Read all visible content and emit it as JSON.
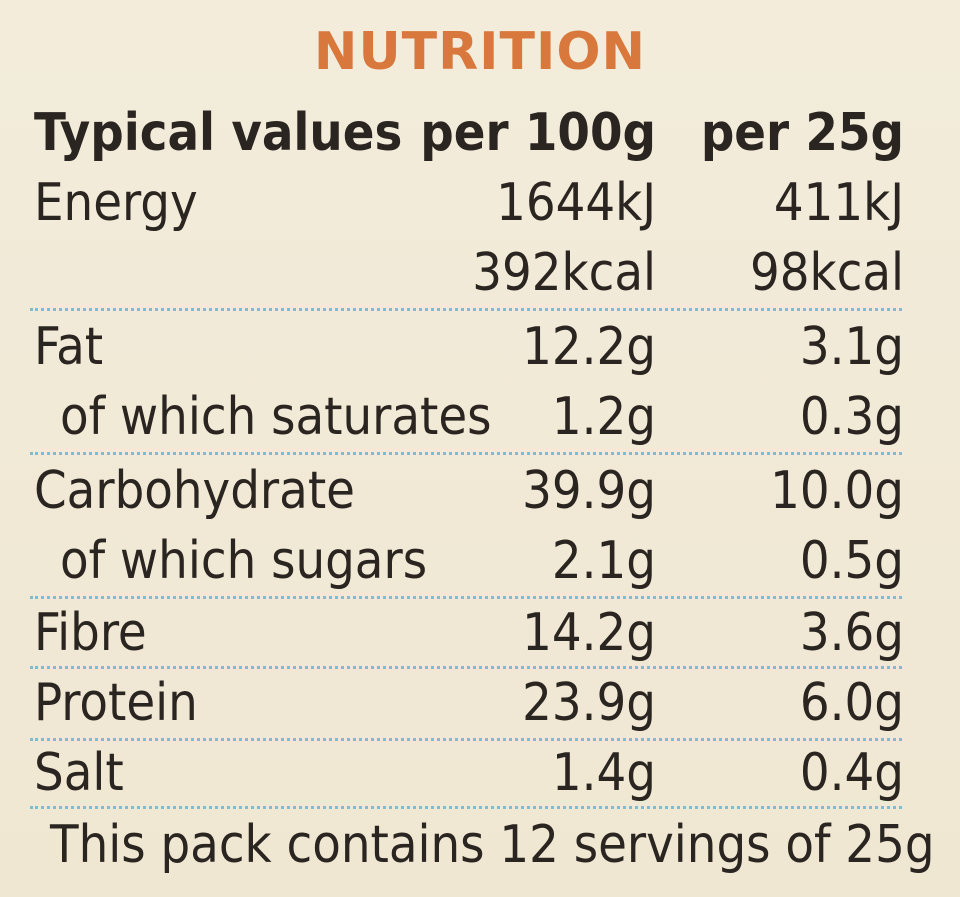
{
  "title": "NUTRITION",
  "header": {
    "label": "Typical values",
    "col1": "per 100g",
    "col2": "per 25g"
  },
  "rows": [
    {
      "label": "Energy",
      "per100": "1644kJ",
      "per25": "411kJ"
    },
    {
      "label": "",
      "per100": "392kcal",
      "per25": "98kcal"
    },
    {
      "label": "Fat",
      "per100": "12.2g",
      "per25": "3.1g"
    },
    {
      "label": "of which saturates",
      "per100": "1.2g",
      "per25": "0.3g"
    },
    {
      "label": "Carbohydrate",
      "per100": "39.9g",
      "per25": "10.0g"
    },
    {
      "label": "of which sugars",
      "per100": "2.1g",
      "per25": "0.5g"
    },
    {
      "label": "Fibre",
      "per100": "14.2g",
      "per25": "3.6g"
    },
    {
      "label": "Protein",
      "per100": "23.9g",
      "per25": "6.0g"
    },
    {
      "label": "Salt",
      "per100": "1.4g",
      "per25": "0.4g"
    }
  ],
  "footer": "This pack contains 12 servings of 25g",
  "colors": {
    "title": "#d9783c",
    "text": "#2a2520",
    "divider": "#7fbcd0",
    "background": "#f1ead8"
  }
}
